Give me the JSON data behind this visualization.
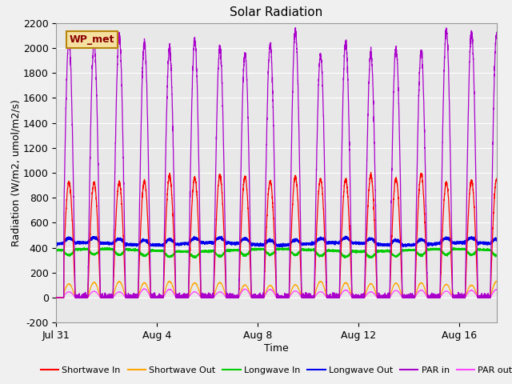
{
  "title": "Solar Radiation",
  "xlabel": "Time",
  "ylabel": "Radiation (W/m2, umol/m2/s)",
  "ylim": [
    -200,
    2200
  ],
  "yticks": [
    -200,
    0,
    200,
    400,
    600,
    800,
    1000,
    1200,
    1400,
    1600,
    1800,
    2000,
    2200
  ],
  "x_tick_labels": [
    "Jul 31",
    "Aug 4",
    "Aug 8",
    "Aug 12",
    "Aug 16"
  ],
  "x_tick_positions": [
    0,
    4,
    8,
    12,
    16
  ],
  "num_days": 17.5,
  "colors": {
    "shortwave_in": "#ff0000",
    "shortwave_out": "#ffa500",
    "longwave_in": "#00cc00",
    "longwave_out": "#0000ee",
    "par_in": "#aa00cc",
    "par_out": "#ff44ff"
  },
  "legend_entries": [
    "Shortwave In",
    "Shortwave Out",
    "Longwave In",
    "Longwave Out",
    "PAR in",
    "PAR out"
  ],
  "wp_met_label": "WP_met",
  "fig_bg": "#f0f0f0",
  "plot_bg": "#e8e8e8"
}
